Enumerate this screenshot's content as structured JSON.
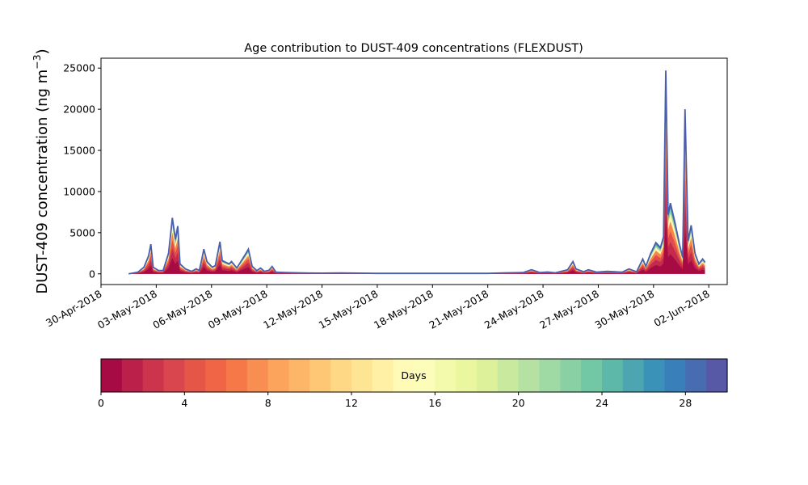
{
  "chart_data": [
    {
      "type": "area",
      "title": "Age contribution to DUST-409 concentrations (FLEXDUST)",
      "ylabel": "DUST-409 concentration (ng m",
      "ylabel_sup": "−3",
      "ylabel_close": ")",
      "xlabel": "",
      "ylim": [
        -1300,
        26200
      ],
      "xlim": [
        "2018-04-30T00:00",
        "2018-06-03T00:00"
      ],
      "yticks": [
        0,
        5000,
        10000,
        15000,
        20000,
        25000
      ],
      "xticks": [
        "30-Apr-2018",
        "03-May-2018",
        "06-May-2018",
        "09-May-2018",
        "12-May-2018",
        "15-May-2018",
        "18-May-2018",
        "21-May-2018",
        "24-May-2018",
        "27-May-2018",
        "30-May-2018",
        "02-Jun-2018"
      ],
      "total_series_color": "#4a5eab",
      "series": [
        {
          "description": "total concentration (all ages, 0-30 days)",
          "points": [
            [
              "2018-05-01T12:00",
              0
            ],
            [
              "2018-05-02T00:00",
              200
            ],
            [
              "2018-05-02T08:00",
              800
            ],
            [
              "2018-05-02T14:00",
              2200
            ],
            [
              "2018-05-02T17:00",
              3600
            ],
            [
              "2018-05-02T20:00",
              800
            ],
            [
              "2018-05-03T03:00",
              400
            ],
            [
              "2018-05-03T09:00",
              400
            ],
            [
              "2018-05-03T16:00",
              2500
            ],
            [
              "2018-05-03T21:00",
              6800
            ],
            [
              "2018-05-04T01:00",
              4200
            ],
            [
              "2018-05-04T04:00",
              5800
            ],
            [
              "2018-05-04T07:00",
              1200
            ],
            [
              "2018-05-04T14:00",
              600
            ],
            [
              "2018-05-04T22:00",
              300
            ],
            [
              "2018-05-05T04:00",
              600
            ],
            [
              "2018-05-05T08:00",
              400
            ],
            [
              "2018-05-05T11:00",
              1600
            ],
            [
              "2018-05-05T14:00",
              3000
            ],
            [
              "2018-05-05T18:00",
              1500
            ],
            [
              "2018-05-06T01:00",
              800
            ],
            [
              "2018-05-06T05:00",
              1000
            ],
            [
              "2018-05-06T11:00",
              3900
            ],
            [
              "2018-05-06T14:00",
              1600
            ],
            [
              "2018-05-06T23:00",
              1200
            ],
            [
              "2018-05-07T02:00",
              1500
            ],
            [
              "2018-05-07T09:00",
              700
            ],
            [
              "2018-05-07T19:00",
              2200
            ],
            [
              "2018-05-08T00:00",
              3000
            ],
            [
              "2018-05-08T05:00",
              900
            ],
            [
              "2018-05-08T11:00",
              400
            ],
            [
              "2018-05-08T16:00",
              700
            ],
            [
              "2018-05-08T21:00",
              300
            ],
            [
              "2018-05-09T03:00",
              450
            ],
            [
              "2018-05-09T07:00",
              900
            ],
            [
              "2018-05-09T12:00",
              200
            ],
            [
              "2018-05-10T00:00",
              150
            ],
            [
              "2018-05-11T00:00",
              100
            ],
            [
              "2018-05-12T00:00",
              80
            ],
            [
              "2018-05-13T00:00",
              100
            ],
            [
              "2018-05-15T00:00",
              60
            ],
            [
              "2018-05-17T00:00",
              60
            ],
            [
              "2018-05-19T00:00",
              60
            ],
            [
              "2018-05-21T00:00",
              60
            ],
            [
              "2018-05-22T00:00",
              120
            ],
            [
              "2018-05-22T22:00",
              150
            ],
            [
              "2018-05-23T09:00",
              500
            ],
            [
              "2018-05-23T20:00",
              150
            ],
            [
              "2018-05-24T06:00",
              220
            ],
            [
              "2018-05-24T16:00",
              120
            ],
            [
              "2018-05-25T08:00",
              500
            ],
            [
              "2018-05-25T15:00",
              1500
            ],
            [
              "2018-05-25T19:00",
              600
            ],
            [
              "2018-05-26T05:00",
              250
            ],
            [
              "2018-05-26T11:00",
              500
            ],
            [
              "2018-05-26T22:00",
              200
            ],
            [
              "2018-05-27T12:00",
              300
            ],
            [
              "2018-05-28T07:00",
              200
            ],
            [
              "2018-05-28T16:00",
              600
            ],
            [
              "2018-05-29T02:00",
              250
            ],
            [
              "2018-05-29T10:00",
              1800
            ],
            [
              "2018-05-29T14:00",
              900
            ],
            [
              "2018-05-29T20:00",
              2400
            ],
            [
              "2018-05-30T03:00",
              3800
            ],
            [
              "2018-05-30T09:00",
              3200
            ],
            [
              "2018-05-30T13:00",
              4500
            ],
            [
              "2018-05-30T16:00",
              24700
            ],
            [
              "2018-05-30T19:00",
              7200
            ],
            [
              "2018-05-30T22:00",
              8600
            ],
            [
              "2018-05-31T04:00",
              6200
            ],
            [
              "2018-05-31T10:00",
              3500
            ],
            [
              "2018-05-31T14:00",
              2000
            ],
            [
              "2018-05-31T17:00",
              20000
            ],
            [
              "2018-05-31T21:00",
              4000
            ],
            [
              "2018-06-01T01:00",
              5900
            ],
            [
              "2018-06-01T06:00",
              2500
            ],
            [
              "2018-06-01T11:00",
              1200
            ],
            [
              "2018-06-01T16:00",
              1800
            ],
            [
              "2018-06-01T19:00",
              1400
            ]
          ]
        }
      ]
    },
    {
      "type": "colorbar",
      "label": "Days",
      "range": [
        0,
        30
      ],
      "ticks": [
        0,
        4,
        8,
        12,
        16,
        20,
        24,
        28
      ],
      "colormap": "Spectral",
      "bins": 30
    }
  ]
}
